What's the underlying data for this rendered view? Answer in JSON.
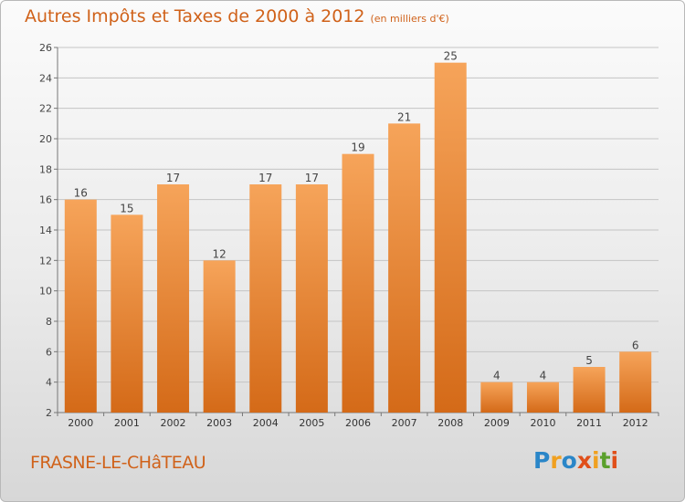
{
  "title": "Autres Impôts et Taxes de 2000 à 2012",
  "unit_note": "(en milliers d'€)",
  "place_name": "FRASNE-LE-CHâTEAU",
  "logo": {
    "letters": [
      "P",
      "r",
      "o",
      "x",
      "i",
      "t",
      "i"
    ],
    "colors": [
      "#2a86c8",
      "#f0a020",
      "#2a86c8",
      "#e04f1a",
      "#f0a020",
      "#5aa02c",
      "#e04f1a"
    ]
  },
  "colors": {
    "accent": "#d0621a",
    "bar_top": "#f6a45a",
    "bar_bottom": "#d46a18",
    "grid": "#c4c4c4"
  },
  "chart_data": {
    "type": "bar",
    "categories": [
      "2000",
      "2001",
      "2002",
      "2003",
      "2004",
      "2005",
      "2006",
      "2007",
      "2008",
      "2009",
      "2010",
      "2011",
      "2012"
    ],
    "values": [
      16,
      15,
      17,
      12,
      17,
      17,
      19,
      21,
      25,
      4,
      4,
      5,
      6
    ],
    "ylim": [
      2,
      26
    ],
    "yticks": [
      2,
      4,
      6,
      8,
      10,
      12,
      14,
      16,
      18,
      20,
      22,
      24,
      26
    ],
    "grid": true
  }
}
